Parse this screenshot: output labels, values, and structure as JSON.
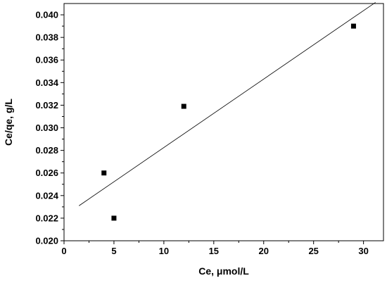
{
  "chart_data": {
    "type": "scatter",
    "title": "",
    "xlabel": "Ce, μmol/L",
    "ylabel": "Ce/qe, g/L",
    "xlim": [
      0,
      32
    ],
    "ylim": [
      0.02,
      0.041
    ],
    "x_ticks": [
      0,
      5,
      10,
      15,
      20,
      25,
      30
    ],
    "x_tick_labels": [
      "0",
      "5",
      "10",
      "15",
      "20",
      "25",
      "30"
    ],
    "y_ticks": [
      0.02,
      0.022,
      0.024,
      0.026,
      0.028,
      0.03,
      0.032,
      0.034,
      0.036,
      0.038,
      0.04
    ],
    "y_tick_labels": [
      "0.020",
      "0.022",
      "0.024",
      "0.026",
      "0.028",
      "0.030",
      "0.032",
      "0.034",
      "0.036",
      "0.038",
      "0.040"
    ],
    "grid": false,
    "legend": "none",
    "series": [
      {
        "marker": "square",
        "color": "#000000",
        "points": [
          {
            "x": 4,
            "y": 0.026
          },
          {
            "x": 5,
            "y": 0.022
          },
          {
            "x": 12,
            "y": 0.0319
          },
          {
            "x": 29,
            "y": 0.039
          }
        ]
      }
    ],
    "fit_line": {
      "x": [
        1.5,
        31.2
      ],
      "y": [
        0.0231,
        0.0411
      ],
      "color": "#000000"
    }
  }
}
